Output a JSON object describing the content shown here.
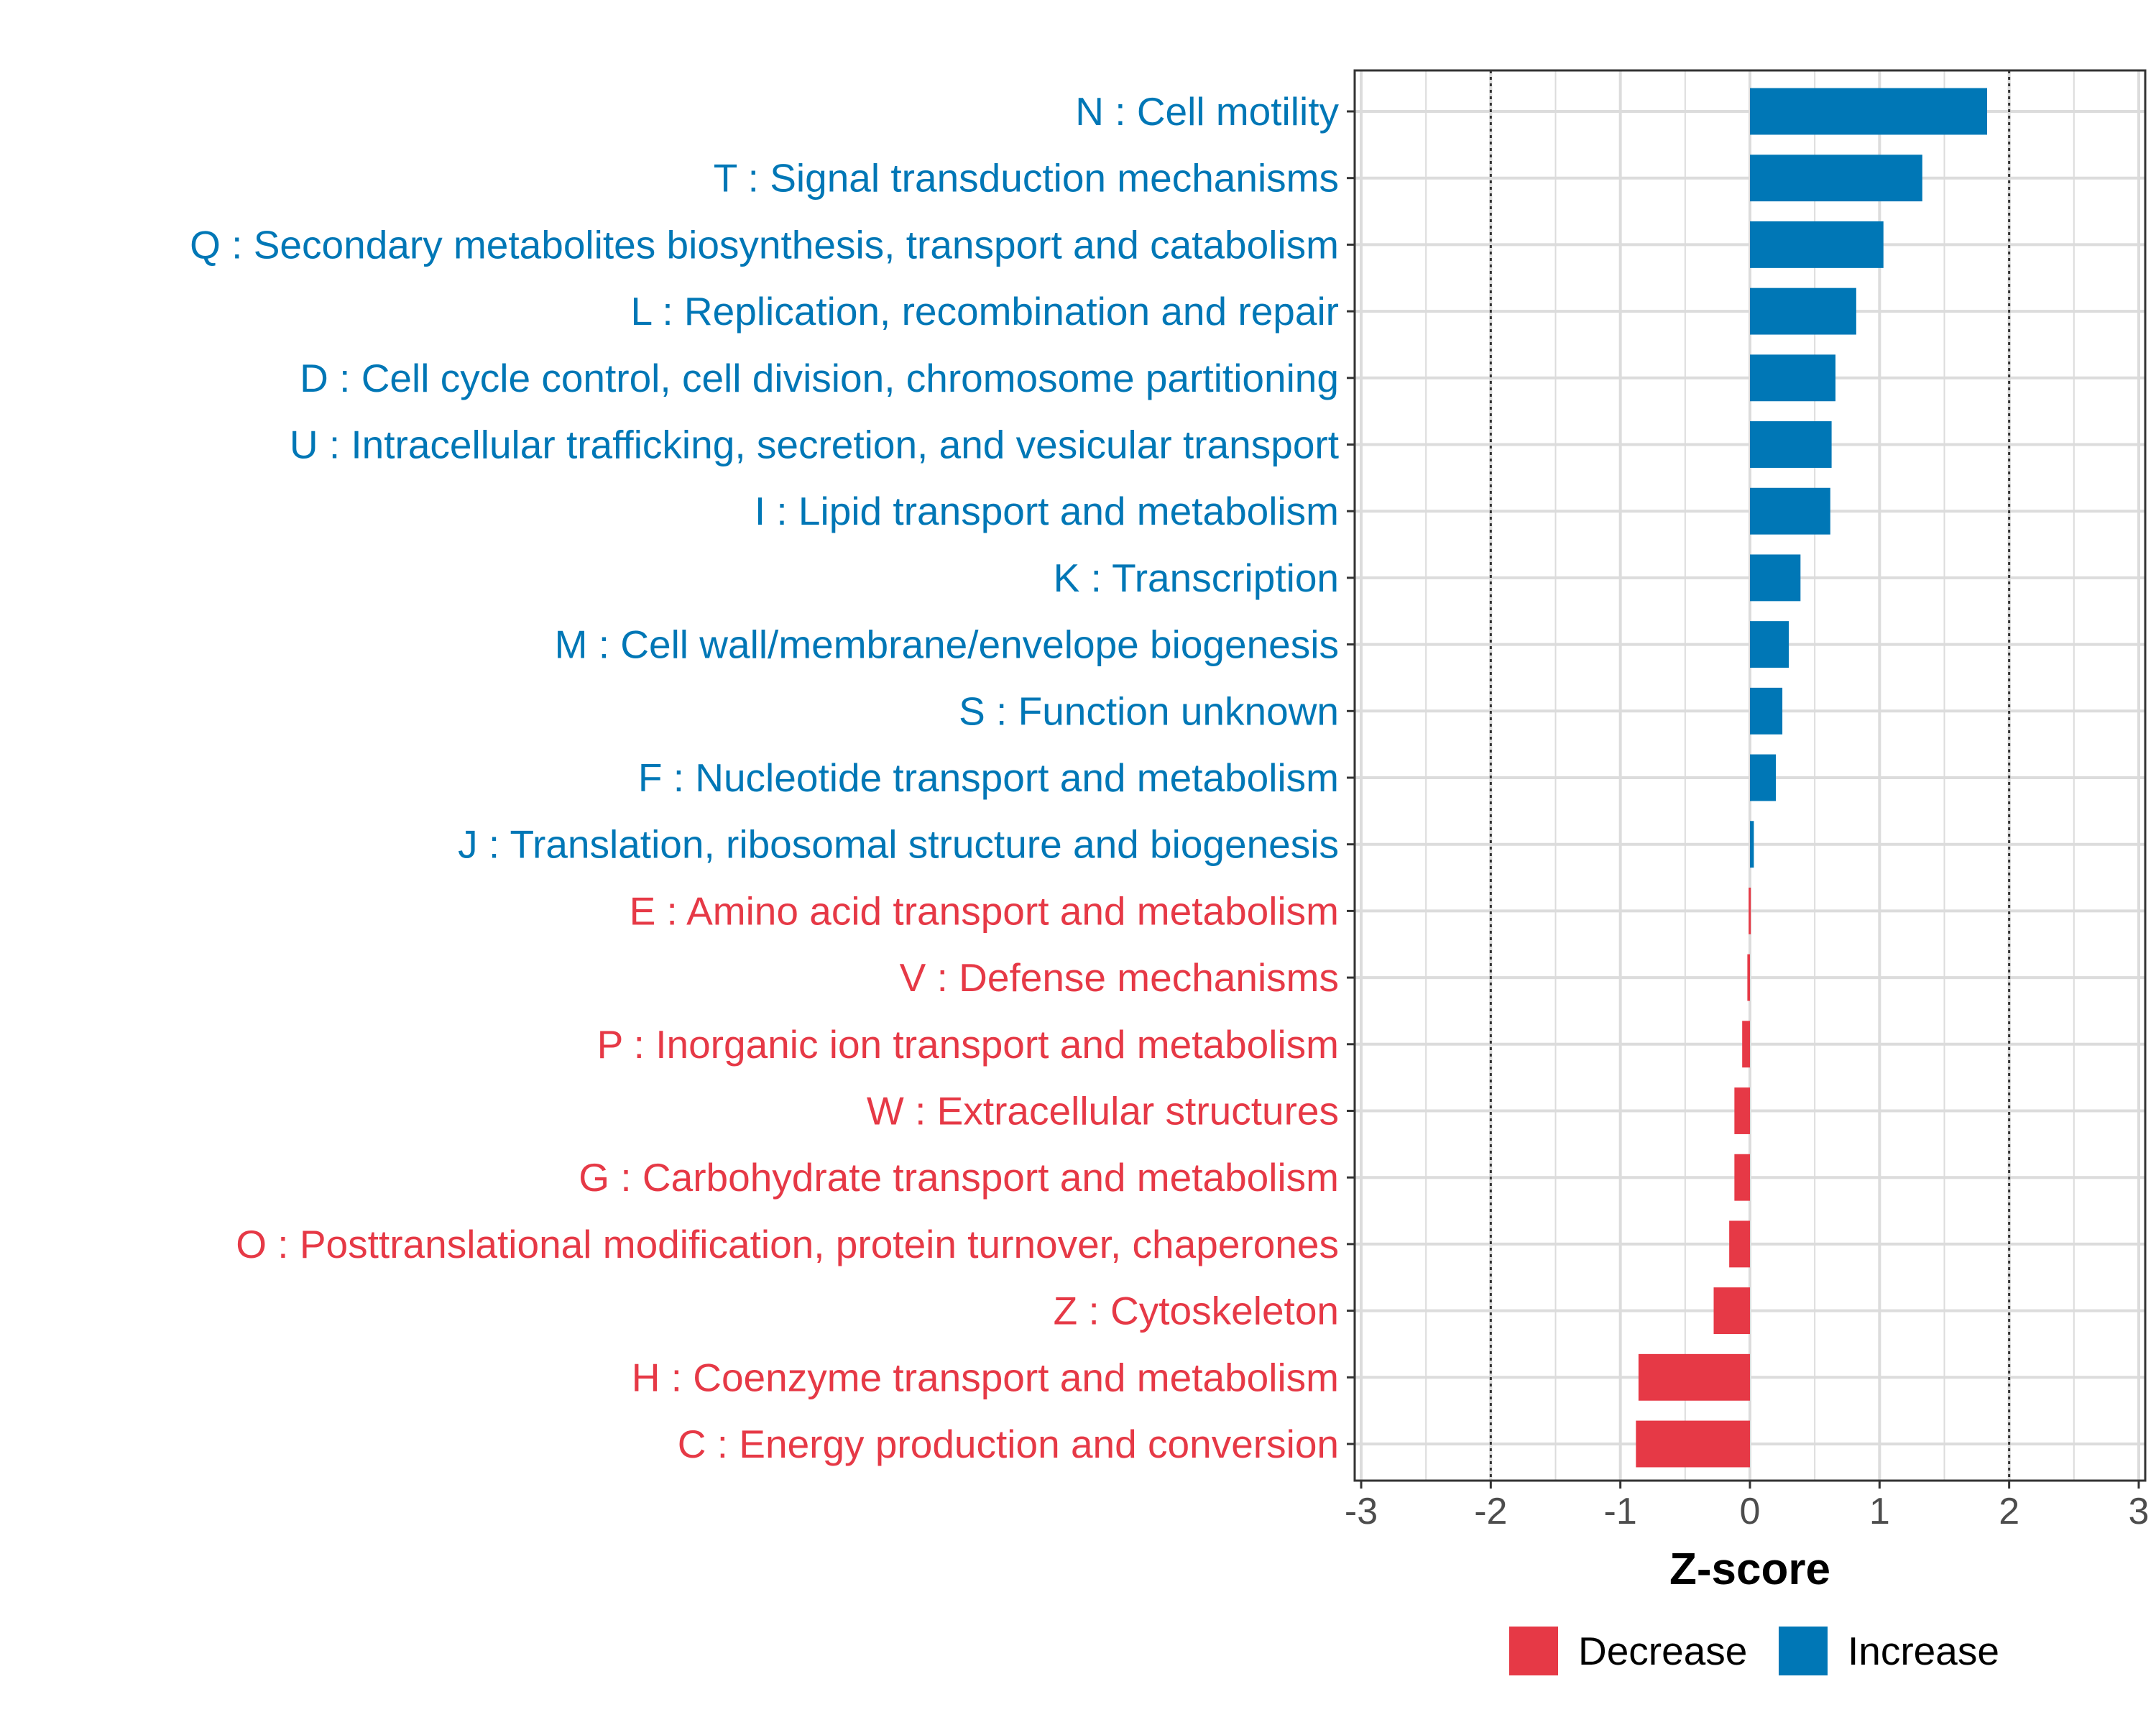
{
  "chart_data": {
    "type": "bar",
    "orientation": "horizontal",
    "categories": [
      "N : Cell motility",
      "T : Signal transduction mechanisms",
      "Q : Secondary metabolites biosynthesis, transport and catabolism",
      "L : Replication, recombination and repair",
      "D : Cell cycle control, cell division, chromosome partitioning",
      "U : Intracellular trafficking, secretion, and vesicular transport",
      "I : Lipid transport and metabolism",
      "K : Transcription",
      "M : Cell wall/membrane/envelope biogenesis",
      "S : Function unknown",
      "F : Nucleotide transport and metabolism",
      "J : Translation, ribosomal structure and biogenesis",
      "E : Amino acid transport and metabolism",
      "V : Defense mechanisms",
      "P : Inorganic ion transport and metabolism",
      "W : Extracellular structures",
      "G : Carbohydrate transport and metabolism",
      "O : Posttranslational modification, protein turnover, chaperones",
      "Z : Cytoskeleton",
      "H : Coenzyme transport and metabolism",
      "C : Energy production and conversion"
    ],
    "values": [
      1.83,
      1.33,
      1.03,
      0.82,
      0.66,
      0.63,
      0.62,
      0.39,
      0.3,
      0.25,
      0.2,
      0.03,
      -0.01,
      -0.02,
      -0.06,
      -0.12,
      -0.12,
      -0.16,
      -0.28,
      -0.86,
      -0.88
    ],
    "groups": [
      "Increase",
      "Increase",
      "Increase",
      "Increase",
      "Increase",
      "Increase",
      "Increase",
      "Increase",
      "Increase",
      "Increase",
      "Increase",
      "Increase",
      "Decrease",
      "Decrease",
      "Decrease",
      "Decrease",
      "Decrease",
      "Decrease",
      "Decrease",
      "Decrease",
      "Decrease"
    ],
    "xlabel": "Z-score",
    "xlim": [
      -3.05,
      3.05
    ],
    "x_ticks": [
      -3,
      -2,
      -1,
      0,
      1,
      2,
      3
    ],
    "x_tick_labels": [
      "-3",
      "-2",
      "-1",
      "0",
      "1",
      "2",
      "3"
    ],
    "reference_lines": [
      -2,
      2
    ],
    "grid": true,
    "legend": {
      "placement": "bottom",
      "entries": [
        {
          "label": "Decrease",
          "color": "#e63946"
        },
        {
          "label": "Increase",
          "color": "#0077b6"
        }
      ]
    },
    "colors": {
      "Decrease": "#e63946",
      "Increase": "#0077b6"
    }
  }
}
